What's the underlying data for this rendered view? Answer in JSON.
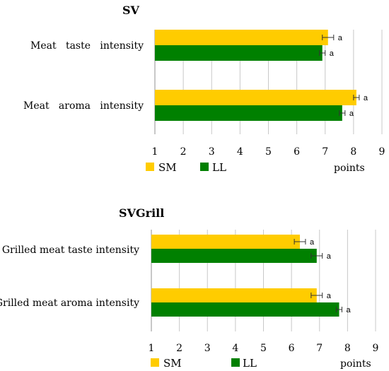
{
  "colors": {
    "SM": "#FFCC00",
    "LL": "#008000",
    "grid": "#c8c8c8",
    "axis": "#909090",
    "errbar": "#333333"
  },
  "chart_data": [
    {
      "type": "bar",
      "orientation": "horizontal",
      "title": "SV",
      "categories": [
        "Meat   taste   intensity",
        "Meat   aroma   intensity"
      ],
      "series": [
        {
          "name": "SM",
          "values": [
            7.1,
            8.1
          ],
          "error": [
            0.2,
            0.1
          ],
          "labels": [
            "a",
            "a"
          ]
        },
        {
          "name": "LL",
          "values": [
            6.9,
            7.6
          ],
          "error": [
            0.1,
            0.1
          ],
          "labels": [
            "a",
            "a"
          ]
        }
      ],
      "xlabel": "points",
      "xlim": [
        1,
        9
      ],
      "xticks": [
        "1",
        "2",
        "3",
        "4",
        "5",
        "6",
        "7",
        "8",
        "9"
      ],
      "grid": true,
      "legend": "bottom"
    },
    {
      "type": "bar",
      "orientation": "horizontal",
      "title": "SVGrill",
      "categories": [
        "Grilled meat taste intensity",
        "Grilled meat aroma intensity"
      ],
      "series": [
        {
          "name": "SM",
          "values": [
            6.3,
            6.9
          ],
          "error": [
            0.2,
            0.2
          ],
          "labels": [
            "a",
            "a"
          ]
        },
        {
          "name": "LL",
          "values": [
            6.9,
            7.7
          ],
          "error": [
            0.2,
            0.1
          ],
          "labels": [
            "a",
            "a"
          ]
        }
      ],
      "xlabel": "points",
      "xlim": [
        1,
        9
      ],
      "xticks": [
        "1",
        "2",
        "3",
        "4",
        "5",
        "6",
        "7",
        "8",
        "9"
      ],
      "grid": true,
      "legend": "bottom"
    }
  ]
}
